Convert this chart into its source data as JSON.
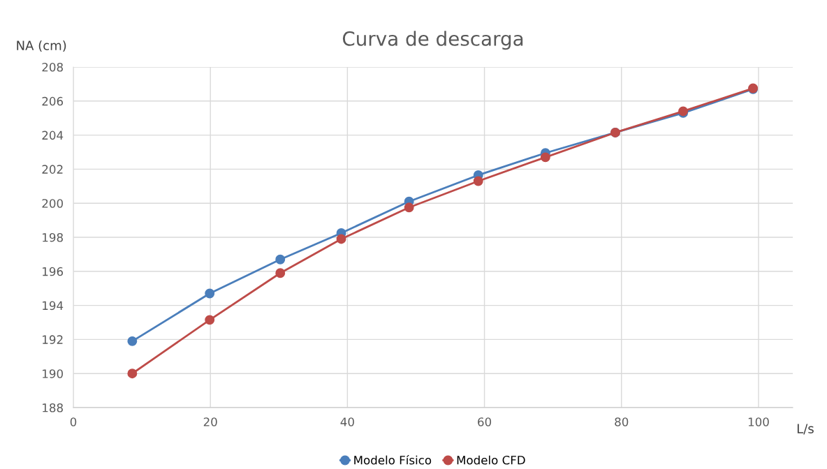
{
  "chart_data": {
    "type": "line",
    "title": "Curva de descarga",
    "xlabel": "L/s",
    "ylabel": "NA (cm)",
    "x": [
      8.6,
      19.9,
      30.2,
      39.1,
      49.0,
      59.1,
      68.9,
      79.1,
      89.0,
      99.2
    ],
    "series": [
      {
        "name": "Modelo Físico",
        "color": "#4a7ebb",
        "values": [
          191.9,
          194.7,
          196.7,
          198.25,
          200.1,
          201.65,
          202.95,
          204.15,
          205.3,
          206.7
        ]
      },
      {
        "name": "Modelo CFD",
        "color": "#be4b48",
        "values": [
          190.0,
          193.15,
          195.9,
          197.9,
          199.75,
          201.3,
          202.7,
          204.15,
          205.4,
          206.75
        ]
      }
    ],
    "xlim": [
      0,
      105
    ],
    "xticks": [
      0,
      20,
      40,
      60,
      80,
      100
    ],
    "ylim": [
      188,
      208
    ],
    "yticks": [
      188,
      190,
      192,
      194,
      196,
      198,
      200,
      202,
      204,
      206,
      208
    ],
    "grid": true,
    "legend": "bottom",
    "marker": "circle",
    "line_style": "solid"
  }
}
